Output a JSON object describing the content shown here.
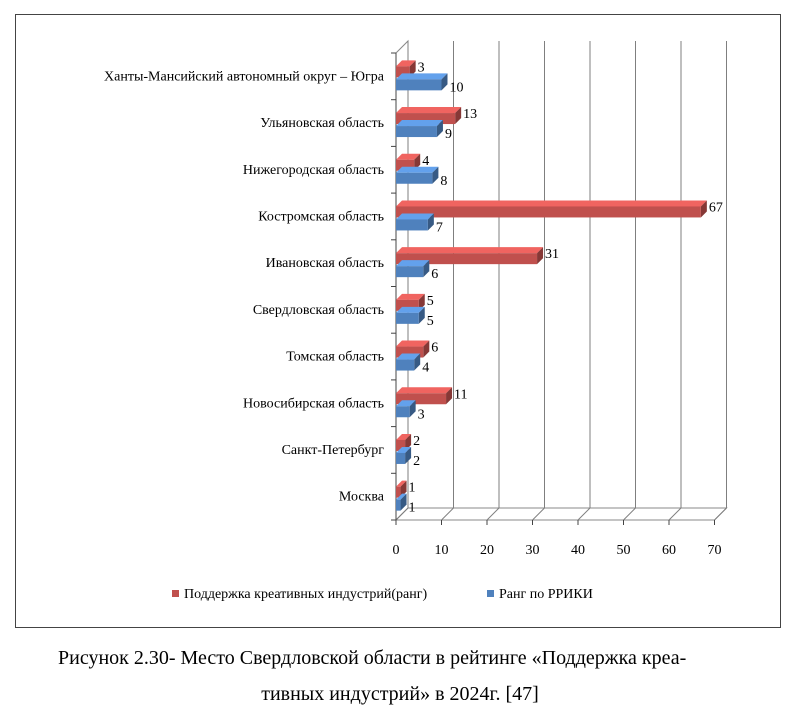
{
  "chart_data": {
    "type": "bar",
    "orientation": "horizontal",
    "style": "3d",
    "categories": [
      "Москва",
      "Санкт-Петербург",
      "Новосибирская область",
      "Томская область",
      "Свердловская область",
      "Ивановская область",
      "Костромская область",
      "Нижегородская область",
      "Ульяновская область",
      "Ханты-Мансийский автономный округ – Югра"
    ],
    "series": [
      {
        "name": "Поддержка креативных индустрий(ранг)",
        "color": "#c0504d",
        "values": [
          1,
          2,
          11,
          6,
          5,
          31,
          67,
          4,
          13,
          3
        ]
      },
      {
        "name": "Ранг по РРИКИ",
        "color": "#4f81bd",
        "values": [
          1,
          2,
          3,
          4,
          5,
          6,
          7,
          8,
          9,
          10
        ]
      }
    ],
    "xlim": [
      0,
      70
    ],
    "x_ticks": [
      0,
      10,
      20,
      30,
      40,
      50,
      60,
      70
    ],
    "grid": true,
    "legend_position": "bottom"
  },
  "caption": {
    "line1": "Рисунок 2.30- Место Свердловской области в рейтинге «Поддержка креа-",
    "line2": "тивных индустрий» в 2024г. [47]"
  }
}
